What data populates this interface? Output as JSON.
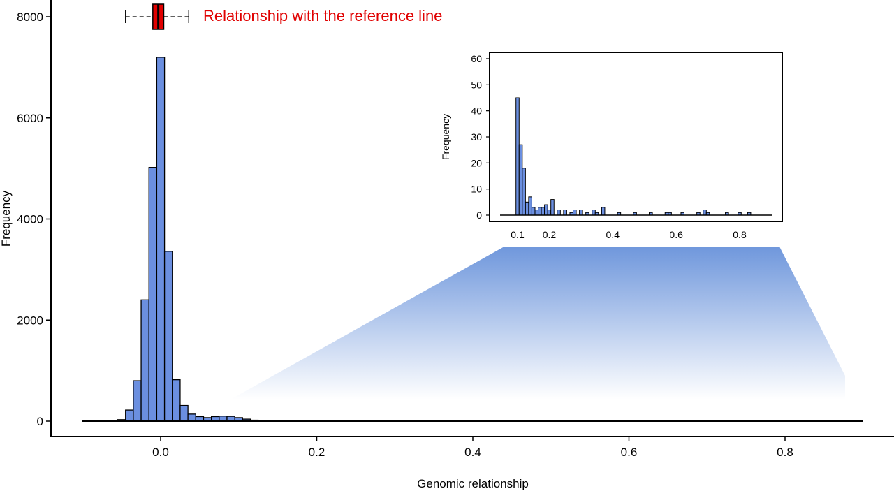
{
  "chart_data": [
    {
      "type": "bar",
      "panel": "main histogram",
      "title": "",
      "xlabel": "Genomic relationship",
      "ylabel": "Frequency",
      "xlim": [
        -0.1,
        0.9
      ],
      "ylim": [
        0,
        8000
      ],
      "x_ticks": [
        "0.0",
        "0.2",
        "0.4",
        "0.6",
        "0.8"
      ],
      "x_tick_values": [
        0.0,
        0.2,
        0.4,
        0.6,
        0.8
      ],
      "y_ticks": [
        "0",
        "2000",
        "4000",
        "6000",
        "8000"
      ],
      "y_tick_values": [
        0,
        2000,
        4000,
        6000,
        8000
      ],
      "bin_width": 0.01,
      "bins": [
        {
          "x": -0.06,
          "count": 10
        },
        {
          "x": -0.05,
          "count": 30
        },
        {
          "x": -0.04,
          "count": 220
        },
        {
          "x": -0.03,
          "count": 800
        },
        {
          "x": -0.02,
          "count": 2400
        },
        {
          "x": -0.01,
          "count": 5020
        },
        {
          "x": 0.0,
          "count": 7200
        },
        {
          "x": 0.01,
          "count": 3360
        },
        {
          "x": 0.02,
          "count": 820
        },
        {
          "x": 0.03,
          "count": 310
        },
        {
          "x": 0.04,
          "count": 140
        },
        {
          "x": 0.05,
          "count": 90
        },
        {
          "x": 0.06,
          "count": 70
        },
        {
          "x": 0.07,
          "count": 90
        },
        {
          "x": 0.08,
          "count": 100
        },
        {
          "x": 0.09,
          "count": 95
        },
        {
          "x": 0.1,
          "count": 70
        },
        {
          "x": 0.11,
          "count": 40
        },
        {
          "x": 0.12,
          "count": 20
        },
        {
          "x": 0.13,
          "count": 8
        }
      ],
      "color": "#6b8fe0",
      "reference_boxplot": {
        "label": "Relationship with the reference line",
        "label_color": "#e00000",
        "box_color": "#e00000",
        "min": -0.045,
        "q1": -0.01,
        "median": -0.003,
        "q3": 0.004,
        "max": 0.036,
        "y_level": 8000
      }
    },
    {
      "type": "bar",
      "panel": "inset histogram",
      "title": "",
      "xlabel": "",
      "ylabel": "Frequency",
      "xlim": [
        0.05,
        0.9
      ],
      "ylim": [
        0,
        60
      ],
      "x_ticks": [
        "0.1",
        "0.2",
        "0.4",
        "0.6",
        "0.8"
      ],
      "x_tick_values": [
        0.1,
        0.2,
        0.4,
        0.6,
        0.8
      ],
      "y_ticks": [
        "0",
        "10",
        "20",
        "30",
        "40",
        "50",
        "60"
      ],
      "y_tick_values": [
        0,
        10,
        20,
        30,
        40,
        50,
        60
      ],
      "bin_width": 0.01,
      "bins": [
        {
          "x": 0.1,
          "count": 45
        },
        {
          "x": 0.11,
          "count": 27
        },
        {
          "x": 0.12,
          "count": 18
        },
        {
          "x": 0.13,
          "count": 5
        },
        {
          "x": 0.14,
          "count": 7
        },
        {
          "x": 0.15,
          "count": 3
        },
        {
          "x": 0.16,
          "count": 2
        },
        {
          "x": 0.17,
          "count": 3
        },
        {
          "x": 0.18,
          "count": 3
        },
        {
          "x": 0.19,
          "count": 4
        },
        {
          "x": 0.2,
          "count": 2
        },
        {
          "x": 0.21,
          "count": 6
        },
        {
          "x": 0.23,
          "count": 2
        },
        {
          "x": 0.25,
          "count": 2
        },
        {
          "x": 0.27,
          "count": 1
        },
        {
          "x": 0.28,
          "count": 2
        },
        {
          "x": 0.3,
          "count": 2
        },
        {
          "x": 0.32,
          "count": 1
        },
        {
          "x": 0.34,
          "count": 2
        },
        {
          "x": 0.35,
          "count": 1
        },
        {
          "x": 0.37,
          "count": 3
        },
        {
          "x": 0.42,
          "count": 1
        },
        {
          "x": 0.47,
          "count": 1
        },
        {
          "x": 0.52,
          "count": 1
        },
        {
          "x": 0.57,
          "count": 1
        },
        {
          "x": 0.58,
          "count": 1
        },
        {
          "x": 0.62,
          "count": 1
        },
        {
          "x": 0.67,
          "count": 1
        },
        {
          "x": 0.69,
          "count": 2
        },
        {
          "x": 0.7,
          "count": 1
        },
        {
          "x": 0.76,
          "count": 1
        },
        {
          "x": 0.8,
          "count": 1
        },
        {
          "x": 0.83,
          "count": 1
        }
      ],
      "color": "#6b8fe0"
    }
  ]
}
